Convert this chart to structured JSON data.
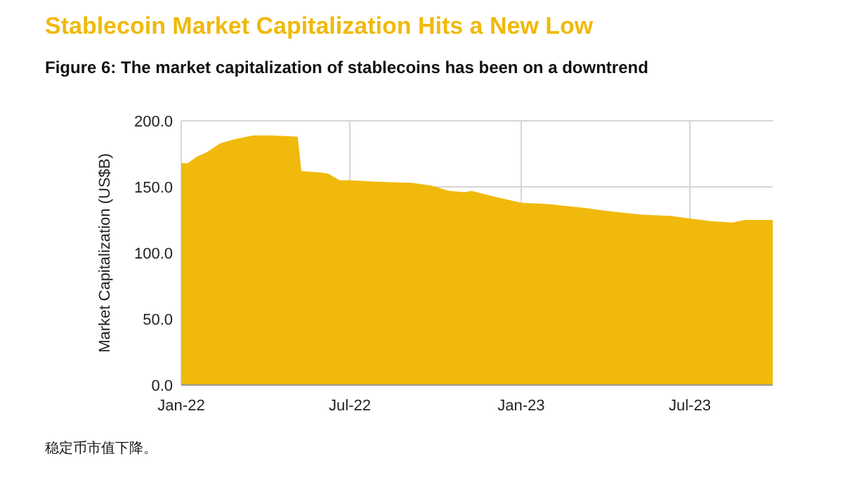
{
  "chart_data": {
    "type": "area",
    "title": "Stablecoin Market Capitalization Hits a New Low",
    "subtitle": "Figure 6: The market capitalization of stablecoins has been on a downtrend",
    "ylabel": "Market Capitalization (US$B)",
    "annotations": [
      "稳定币市值下降。"
    ],
    "x": [
      "2022-01-01",
      "2022-01-08",
      "2022-01-18",
      "2022-01-28",
      "2022-02-12",
      "2022-02-27",
      "2022-03-19",
      "2022-04-08",
      "2022-05-06",
      "2022-05-10",
      "2022-05-29",
      "2022-06-08",
      "2022-06-20",
      "2022-07-01",
      "2022-07-28",
      "2022-09-06",
      "2022-09-26",
      "2022-10-16",
      "2022-11-01",
      "2022-11-09",
      "2022-12-01",
      "2023-01-01",
      "2023-01-30",
      "2023-03-11",
      "2023-03-31",
      "2023-05-10",
      "2023-06-10",
      "2023-07-01",
      "2023-07-25",
      "2023-08-16",
      "2023-08-29",
      "2023-09-28"
    ],
    "values": [
      168,
      168,
      173,
      176,
      183,
      186,
      189,
      189,
      188,
      162,
      161,
      160,
      155,
      155,
      154,
      153,
      151,
      147,
      146,
      147,
      143,
      138,
      137,
      134,
      132,
      129,
      128,
      126,
      124,
      123,
      125,
      125
    ],
    "color": "#f0b90b",
    "xlim": [
      "2022-01-01",
      "2023-09-28"
    ],
    "ylim": [
      0,
      200
    ],
    "xticks": [
      {
        "value": "2022-01-01",
        "label": "Jan-22"
      },
      {
        "value": "2022-07-01",
        "label": "Jul-22"
      },
      {
        "value": "2023-01-01",
        "label": "Jan-23"
      },
      {
        "value": "2023-07-01",
        "label": "Jul-23"
      }
    ],
    "yticks": [
      {
        "value": 0,
        "label": "0.0"
      },
      {
        "value": 50,
        "label": "50.0"
      },
      {
        "value": 100,
        "label": "100.0"
      },
      {
        "value": 150,
        "label": "150.0"
      },
      {
        "value": 200,
        "label": "200.0"
      }
    ],
    "grid": true
  }
}
